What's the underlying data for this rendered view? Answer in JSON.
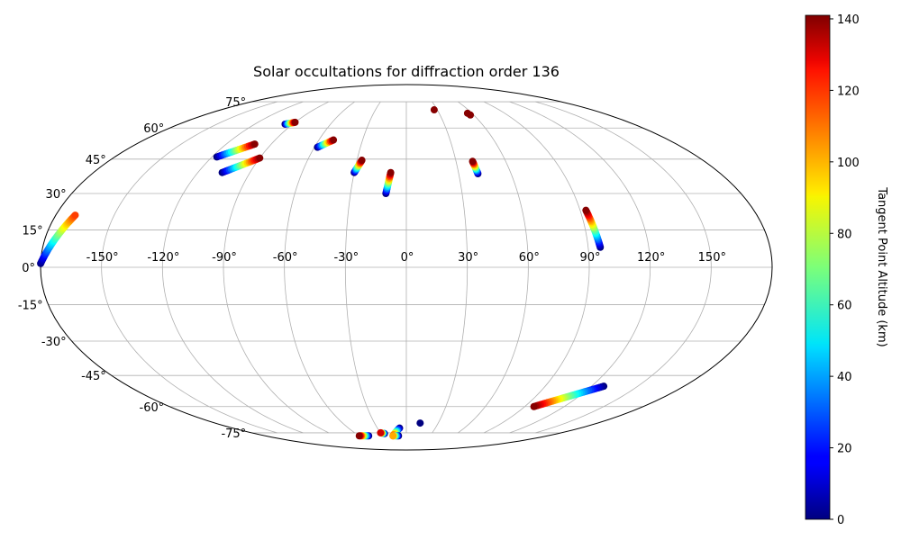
{
  "chart_data": {
    "type": "scatter",
    "projection": "mollweide",
    "title": "Solar occultations for diffraction order 136",
    "xticks": [
      -150,
      -120,
      -90,
      -60,
      -30,
      0,
      30,
      60,
      90,
      120,
      150
    ],
    "xtick_labels": [
      "-150°",
      "-120°",
      "-90°",
      "-60°",
      "-30°",
      "0°",
      "30°",
      "60°",
      "90°",
      "120°",
      "150°"
    ],
    "yticks": [
      -75,
      -60,
      -45,
      -30,
      -15,
      0,
      15,
      30,
      45,
      60,
      75
    ],
    "ytick_labels": [
      "-75°",
      "-60°",
      "-45°",
      "-30°",
      "-15°",
      "0°",
      "15°",
      "30°",
      "45°",
      "60°",
      "75°"
    ],
    "grid": true,
    "colorbar": {
      "label": "Tangent Point Altitude (km)",
      "range": [
        0,
        141
      ],
      "ticks": [
        0,
        20,
        40,
        60,
        80,
        100,
        120,
        140
      ],
      "tick_labels": [
        "0",
        "20",
        "40",
        "60",
        "80",
        "100",
        "120",
        "140"
      ],
      "colormap": "jet"
    },
    "tracks": [
      {
        "start_lon": -180,
        "start_lat": 1.5,
        "end_lon": -170,
        "end_lat": 21,
        "start_alt": 0,
        "end_alt": 115,
        "points": 40
      },
      {
        "start_lon": -96,
        "start_lat": 62,
        "end_lon": -90,
        "end_lat": 63,
        "start_alt": 0,
        "end_alt": 140,
        "points": 10
      },
      {
        "start_lon": -117,
        "start_lat": 46,
        "end_lon": -101,
        "end_lat": 52,
        "start_alt": 0,
        "end_alt": 140,
        "points": 22
      },
      {
        "start_lon": -106,
        "start_lat": 39,
        "end_lon": -90,
        "end_lat": 45.5,
        "start_alt": 0,
        "end_alt": 140,
        "points": 22
      },
      {
        "start_lon": -58,
        "start_lat": 50.5,
        "end_lon": -50,
        "end_lat": 54,
        "start_alt": 0,
        "end_alt": 140,
        "points": 12
      },
      {
        "start_lon": -30,
        "start_lat": 39,
        "end_lon": -27,
        "end_lat": 44.5,
        "start_alt": 0,
        "end_alt": 140,
        "points": 16
      },
      {
        "start_lon": -11,
        "start_lat": 30,
        "end_lon": -9,
        "end_lat": 39,
        "start_alt": 0,
        "end_alt": 140,
        "points": 16
      },
      {
        "start_lon": 27,
        "start_lat": 70,
        "end_lon": 27,
        "end_lat": 70,
        "start_alt": 140,
        "end_alt": 140,
        "points": 1
      },
      {
        "start_lon": 57,
        "start_lat": 67,
        "end_lon": 56,
        "end_lat": 68,
        "start_alt": 140,
        "end_alt": 140,
        "points": 2
      },
      {
        "start_lon": 41,
        "start_lat": 38.5,
        "end_lon": 40,
        "end_lat": 44,
        "start_alt": 0,
        "end_alt": 140,
        "points": 14
      },
      {
        "start_lon": 96,
        "start_lat": 8,
        "end_lon": 93,
        "end_lat": 23,
        "start_alt": 0,
        "end_alt": 140,
        "points": 30
      },
      {
        "start_lon": 128,
        "start_lat": -50,
        "end_lon": 97,
        "end_lat": -60,
        "start_alt": 0,
        "end_alt": 140,
        "points": 40
      },
      {
        "start_lon": 13,
        "start_lat": -69,
        "end_lon": 13,
        "end_lat": -69,
        "start_alt": 0,
        "end_alt": 0,
        "points": 1
      },
      {
        "start_lon": -7,
        "start_lat": -72,
        "end_lon": -17,
        "end_lat": -77,
        "start_alt": 0,
        "end_alt": 120,
        "points": 12
      },
      {
        "start_lon": -10,
        "start_lat": -77,
        "end_lon": -17,
        "end_lat": -77,
        "start_alt": 0,
        "end_alt": 100,
        "points": 6
      },
      {
        "start_lon": -26,
        "start_lat": -75.5,
        "end_lon": -30,
        "end_lat": -75,
        "start_alt": 0,
        "end_alt": 130,
        "points": 6
      },
      {
        "start_lon": -48,
        "start_lat": -77,
        "end_lon": -60,
        "end_lat": -77,
        "start_alt": 0,
        "end_alt": 140,
        "points": 10
      }
    ]
  }
}
